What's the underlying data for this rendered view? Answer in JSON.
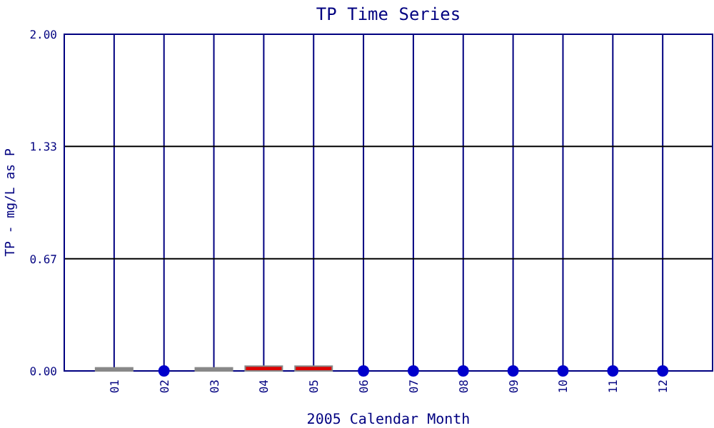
{
  "chart_data": {
    "type": "bar",
    "title": "TP Time Series",
    "xlabel": "2005 Calendar Month",
    "ylabel": "TP - mg/L as P",
    "categories": [
      "01",
      "02",
      "03",
      "04",
      "05",
      "06",
      "07",
      "08",
      "09",
      "10",
      "11",
      "12"
    ],
    "series": [
      {
        "colors": [
          "#888888",
          null,
          "#888888",
          "#dd0000",
          "#dd0000",
          null,
          null,
          null,
          null,
          null,
          null,
          null
        ],
        "color": "#888888",
        "values": [
          0.01,
          null,
          0.01,
          0.02,
          0.02,
          null,
          null,
          null,
          null,
          null,
          null,
          null
        ]
      },
      {
        "type": "scatter",
        "color": "#0000cc",
        "values": [
          null,
          0,
          null,
          null,
          null,
          0,
          0,
          0,
          0,
          0,
          0,
          0
        ]
      }
    ],
    "ylim": [
      0,
      2
    ],
    "yticks": [
      {
        "value": 0,
        "label": "0.00"
      },
      {
        "value": 0.6667,
        "label": "0.67"
      },
      {
        "value": 1.3333,
        "label": "1.33"
      },
      {
        "value": 2,
        "label": "2.00"
      }
    ],
    "grid": true,
    "marker": "circle"
  }
}
